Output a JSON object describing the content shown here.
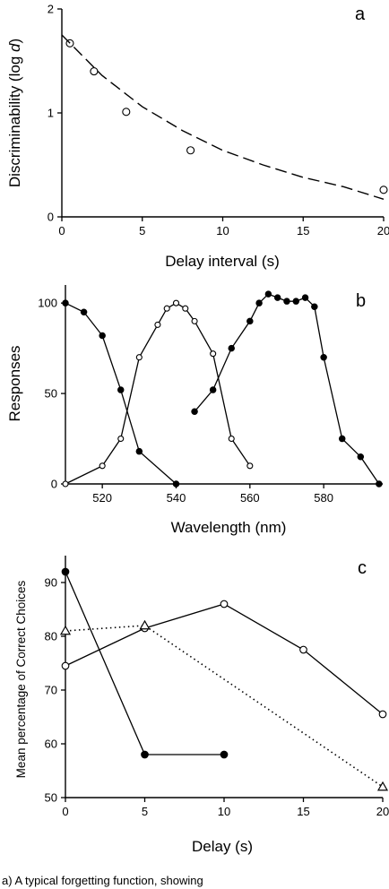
{
  "chart_data": [
    {
      "type": "scatter",
      "panel_label": "a",
      "xlabel": "Delay interval (s)",
      "ylabel_main": "Discriminability (log ",
      "ylabel_var": "d",
      "ylabel_close": ")",
      "xlim": [
        0,
        20
      ],
      "ylim": [
        0,
        2
      ],
      "xticks": [
        0,
        5,
        10,
        15,
        20
      ],
      "yticks": [
        0,
        1,
        2
      ],
      "series": [
        {
          "kind": "points",
          "marker": "open-circle",
          "x": [
            0.5,
            2,
            4,
            8,
            20
          ],
          "y": [
            1.67,
            1.4,
            1.01,
            0.64,
            0.26
          ]
        },
        {
          "kind": "fit",
          "style": "dashed",
          "x": [
            0,
            2.5,
            5,
            7.5,
            10,
            12.5,
            15,
            17.5,
            20
          ],
          "y": [
            1.75,
            1.36,
            1.06,
            0.83,
            0.64,
            0.5,
            0.38,
            0.29,
            0.17
          ]
        }
      ]
    },
    {
      "type": "line",
      "panel_label": "b",
      "xlabel": "Wavelength (nm)",
      "ylabel": "Responses",
      "xlim": [
        510,
        596
      ],
      "ylim": [
        0,
        110
      ],
      "xticks": [
        520,
        540,
        560,
        580
      ],
      "yticks": [
        0,
        50,
        100
      ],
      "series": [
        {
          "marker": "filled-circle",
          "x": [
            510,
            515,
            520,
            525,
            530,
            540
          ],
          "y": [
            100,
            95,
            82,
            52,
            18,
            0
          ]
        },
        {
          "marker": "open-circle",
          "x": [
            510,
            520,
            525,
            530,
            535,
            537.5,
            540,
            542.5,
            545,
            550,
            555,
            560
          ],
          "y": [
            0,
            10,
            25,
            70,
            88,
            97,
            100,
            97,
            90,
            72,
            25,
            10
          ]
        },
        {
          "marker": "filled-circle",
          "x": [
            545,
            550,
            555,
            560,
            562.5,
            565,
            567.5,
            570,
            572.5,
            575,
            577.5,
            580,
            585,
            590,
            595
          ],
          "y": [
            40,
            52,
            75,
            90,
            100,
            105,
            103,
            101,
            101,
            103,
            98,
            70,
            25,
            15,
            0
          ]
        }
      ]
    },
    {
      "type": "line",
      "panel_label": "c",
      "xlabel": "Delay (s)",
      "ylabel": "Mean percentage of Correct Choices",
      "xlim": [
        0,
        20
      ],
      "ylim": [
        50,
        95
      ],
      "xticks": [
        0,
        5,
        10,
        15,
        20
      ],
      "yticks": [
        50,
        60,
        70,
        80,
        90
      ],
      "series": [
        {
          "marker": "filled-circle",
          "line": "solid",
          "x": [
            0,
            5,
            10
          ],
          "y": [
            92,
            58,
            58
          ]
        },
        {
          "marker": "open-circle",
          "line": "solid",
          "x": [
            0,
            5,
            10,
            15,
            20
          ],
          "y": [
            74.5,
            81.5,
            86,
            77.5,
            65.5
          ]
        },
        {
          "marker": "open-triangle",
          "line": "dotted",
          "x": [
            0,
            5,
            20
          ],
          "y": [
            81,
            82,
            52
          ]
        }
      ]
    }
  ],
  "caption": "a) A typical forgetting function, showing"
}
